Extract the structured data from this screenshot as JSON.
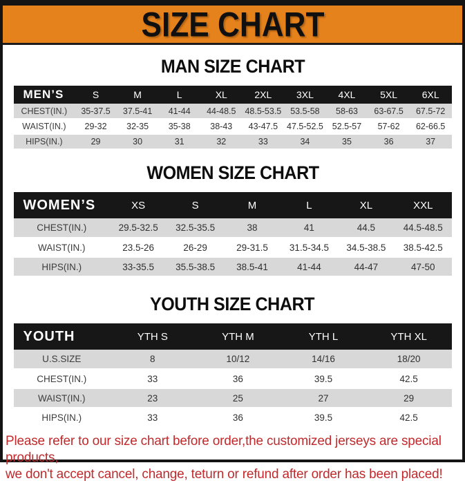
{
  "banner": {
    "title": "SIZE CHART"
  },
  "colors": {
    "banner_orange": "#E5821C",
    "frame_black": "#141414",
    "table_header_black": "#171717",
    "row_stripe_gray": "#D8D8D8",
    "note_red": "#C02A2C"
  },
  "sections": [
    {
      "heading": "MAN SIZE CHART",
      "table": {
        "corner": "MEN’S",
        "columns": [
          "S",
          "M",
          "L",
          "XL",
          "2XL",
          "3XL",
          "4XL",
          "5XL",
          "6XL"
        ],
        "rows": [
          {
            "label": "CHEST(IN.)",
            "values": [
              "35-37.5",
              "37.5-41",
              "41-44",
              "44-48.5",
              "48.5-53.5",
              "53.5-58",
              "58-63",
              "63-67.5",
              "67.5-72"
            ]
          },
          {
            "label": "WAIST(IN.)",
            "values": [
              "29-32",
              "32-35",
              "35-38",
              "38-43",
              "43-47.5",
              "47.5-52.5",
              "52.5-57",
              "57-62",
              "62-66.5"
            ]
          },
          {
            "label": "HIPS(IN.)",
            "values": [
              "29",
              "30",
              "31",
              "32",
              "33",
              "34",
              "35",
              "36",
              "37"
            ]
          }
        ]
      }
    },
    {
      "heading": "WOMEN SIZE CHART",
      "table": {
        "corner": "WOMEN’S",
        "columns": [
          "XS",
          "S",
          "M",
          "L",
          "XL",
          "XXL"
        ],
        "rows": [
          {
            "label": "CHEST(IN.)",
            "values": [
              "29.5-32.5",
              "32.5-35.5",
              "38",
              "41",
              "44.5",
              "44.5-48.5"
            ]
          },
          {
            "label": "WAIST(IN.)",
            "values": [
              "23.5-26",
              "26-29",
              "29-31.5",
              "31.5-34.5",
              "34.5-38.5",
              "38.5-42.5"
            ]
          },
          {
            "label": "HIPS(IN.)",
            "values": [
              "33-35.5",
              "35.5-38.5",
              "38.5-41",
              "41-44",
              "44-47",
              "47-50"
            ]
          }
        ]
      }
    },
    {
      "heading": "YOUTH SIZE CHART",
      "table": {
        "corner": "YOUTH",
        "columns": [
          "YTH S",
          "YTH M",
          "YTH L",
          "YTH XL"
        ],
        "rows": [
          {
            "label": "U.S.SIZE",
            "values": [
              "8",
              "10/12",
              "14/16",
              "18/20"
            ]
          },
          {
            "label": "CHEST(IN.)",
            "values": [
              "33",
              "36",
              "39.5",
              "42.5"
            ]
          },
          {
            "label": "WAIST(IN.)",
            "values": [
              "23",
              "25",
              "27",
              "29"
            ]
          },
          {
            "label": "HIPS(IN.)",
            "values": [
              "33",
              "36",
              "39.5",
              "42.5"
            ]
          }
        ]
      }
    }
  ],
  "note": {
    "line1": "Please refer to our size chart before order,the customized jerseys are special products,",
    "line2": "we don't accept cancel, change, teturn or refund after order has been placed!"
  }
}
